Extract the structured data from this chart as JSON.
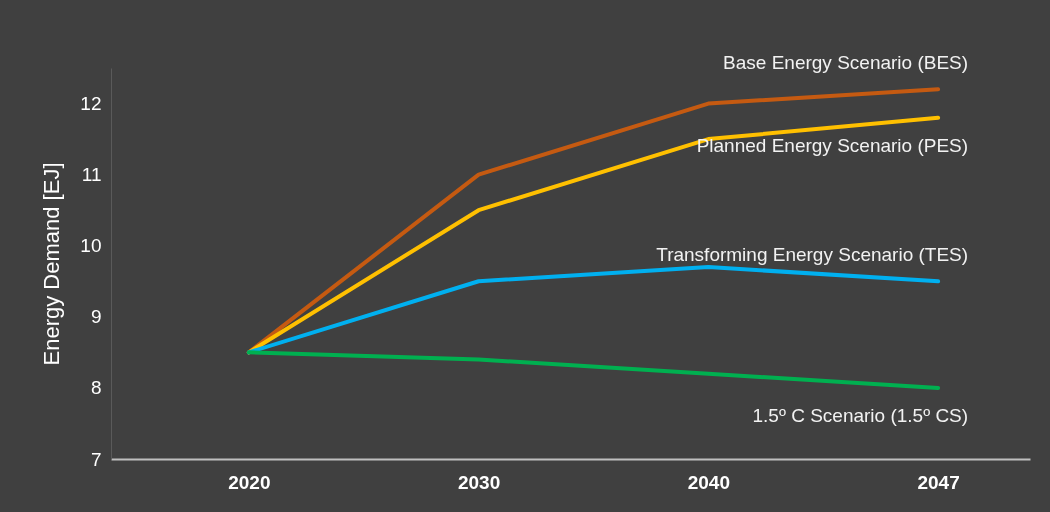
{
  "chart_data": {
    "type": "line",
    "ylabel": "Energy Demand [EJ]",
    "categories": [
      "2020",
      "2030",
      "2040",
      "2047"
    ],
    "series": [
      {
        "name": "Base Energy Scenario (BES)",
        "color": "#c55a11",
        "values": [
          8.5,
          11.0,
          12.0,
          12.2
        ]
      },
      {
        "name": "Planned Energy Scenario (PES)",
        "color": "#ffc000",
        "values": [
          8.5,
          10.5,
          11.5,
          11.8
        ]
      },
      {
        "name": "Transforming Energy Scenario (TES)",
        "color": "#00b0f0",
        "values": [
          8.5,
          9.5,
          9.7,
          9.5
        ]
      },
      {
        "name": "1.5º C Scenario (1.5º CS)",
        "color": "#00b050",
        "values": [
          8.5,
          8.4,
          8.2,
          8.0
        ]
      }
    ],
    "ylim": [
      7,
      12.5
    ],
    "yticks": [
      7,
      8,
      9,
      10,
      11,
      12
    ],
    "grid": false,
    "legend": false,
    "marker": "none",
    "line_style": "solid"
  }
}
